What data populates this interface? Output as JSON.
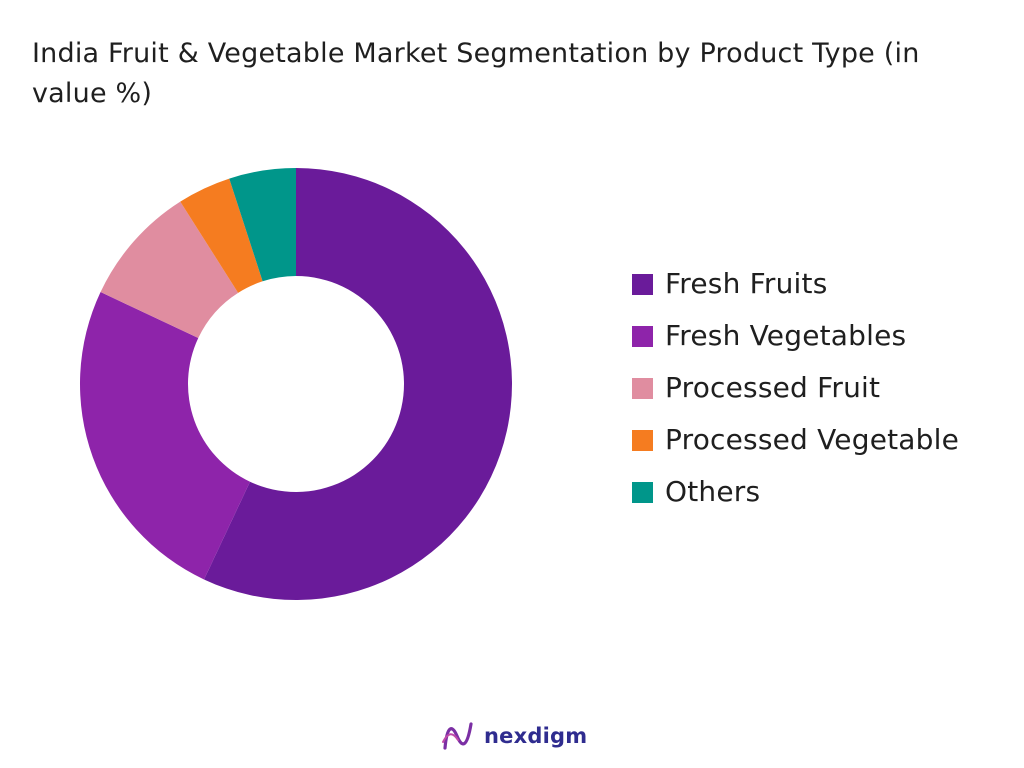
{
  "title": "India Fruit & Vegetable Market Segmentation by Product Type (in value %)",
  "brand": {
    "name": "nexdigm",
    "logo_icon": "nexdigm-logo-icon"
  },
  "chart_data": {
    "type": "pie",
    "variant": "donut",
    "title": "India Fruit & Vegetable Market Segmentation by Product Type (in value %)",
    "legend_position": "right",
    "categories": [
      "Fresh Fruits",
      "Fresh Vegetables",
      "Processed Fruit",
      "Processed Vegetable",
      "Others"
    ],
    "values": [
      57,
      25,
      9,
      4,
      5
    ],
    "colors": [
      "#6a1b9a",
      "#8e24aa",
      "#e08da0",
      "#f57c20",
      "#00968a"
    ]
  }
}
